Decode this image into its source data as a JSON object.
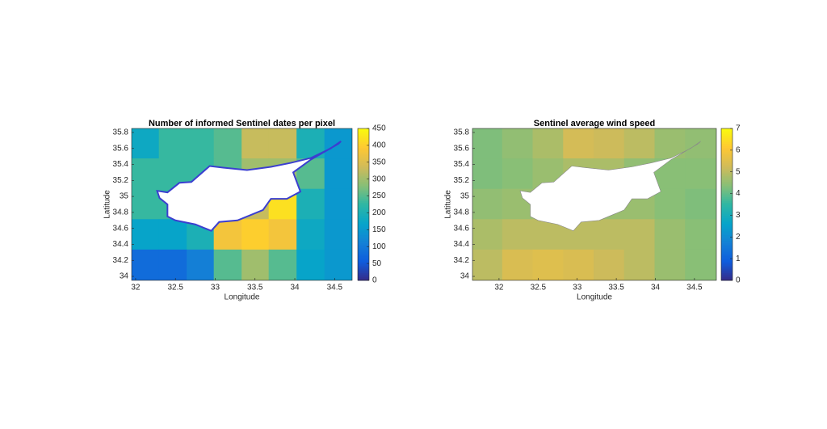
{
  "chart_data": [
    {
      "type": "heatmap",
      "title": "Number of informed Sentinel dates per pixel",
      "xlabel": "Longitude",
      "ylabel": "Latitude",
      "x": [
        32.12,
        32.47,
        32.82,
        33.16,
        33.51,
        33.85,
        34.2,
        34.55
      ],
      "y": [
        35.66,
        35.28,
        34.9,
        34.52,
        34.14
      ],
      "z": [
        [
          180,
          230,
          230,
          250,
          330,
          330,
          200,
          150
        ],
        [
          230,
          230,
          230,
          250,
          300,
          300,
          250,
          150
        ],
        [
          230,
          230,
          230,
          250,
          330,
          420,
          200,
          150
        ],
        [
          170,
          170,
          200,
          380,
          400,
          380,
          180,
          150
        ],
        [
          80,
          80,
          110,
          250,
          300,
          250,
          170,
          150
        ]
      ],
      "xlim": [
        31.95,
        34.72
      ],
      "ylim": [
        33.95,
        35.85
      ],
      "xticks": [
        32,
        32.5,
        33,
        33.5,
        34,
        34.5
      ],
      "yticks": [
        34,
        34.2,
        34.4,
        34.6,
        34.8,
        35,
        35.2,
        35.4,
        35.6,
        35.8
      ],
      "clim": [
        0,
        450
      ],
      "cticks": [
        0,
        50,
        100,
        150,
        200,
        250,
        300,
        350,
        400,
        450
      ],
      "colormap": [
        "#352a87",
        "#0f5cdd",
        "#1481d6",
        "#06a4ca",
        "#2eb7a4",
        "#87bf77",
        "#d1bb59",
        "#fec832",
        "#f9fb0e"
      ]
    },
    {
      "type": "heatmap",
      "title": "Sentinel average wind speed",
      "xlabel": "Longitude",
      "ylabel": "Latitude",
      "x": [
        31.85,
        32.24,
        32.63,
        33.02,
        33.41,
        33.8,
        34.19,
        34.58
      ],
      "y": [
        35.66,
        35.28,
        34.9,
        34.52,
        34.14
      ],
      "z": [
        [
          4.3,
          4.5,
          4.8,
          5.3,
          5.2,
          5.0,
          4.6,
          4.5
        ],
        [
          4.3,
          4.4,
          4.6,
          4.8,
          4.8,
          4.5,
          4.4,
          4.4
        ],
        [
          4.5,
          4.6,
          4.7,
          4.6,
          4.6,
          4.6,
          4.4,
          4.3
        ],
        [
          4.8,
          5.0,
          5.0,
          5.0,
          5.0,
          5.0,
          4.6,
          4.4
        ],
        [
          5.0,
          5.4,
          5.5,
          5.4,
          5.2,
          5.0,
          4.6,
          4.4
        ]
      ],
      "xlim": [
        31.66,
        34.78
      ],
      "ylim": [
        33.95,
        35.85
      ],
      "xticks": [
        32,
        32.5,
        33,
        33.5,
        34,
        34.5
      ],
      "yticks": [
        34,
        34.2,
        34.4,
        34.6,
        34.8,
        35,
        35.2,
        35.4,
        35.6,
        35.8
      ],
      "clim": [
        0,
        7
      ],
      "cticks": [
        0,
        1,
        2,
        3,
        4,
        5,
        6,
        7
      ],
      "colormap": [
        "#352a87",
        "#0f5cdd",
        "#1481d6",
        "#06a4ca",
        "#2eb7a4",
        "#87bf77",
        "#d1bb59",
        "#fec832",
        "#f9fb0e"
      ]
    }
  ]
}
